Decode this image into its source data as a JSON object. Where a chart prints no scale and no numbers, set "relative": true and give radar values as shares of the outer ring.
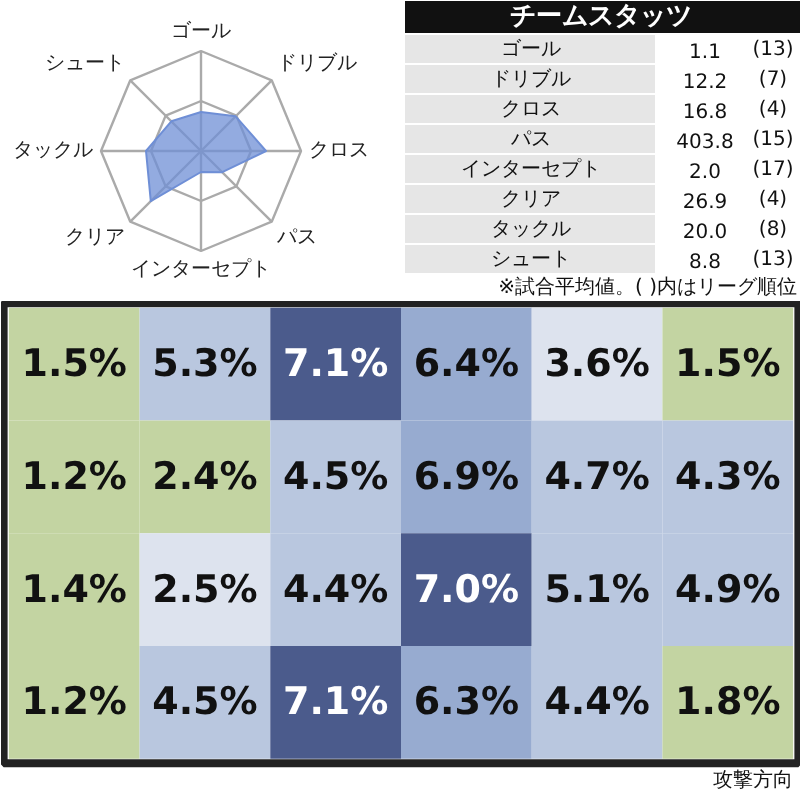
{
  "chart_data": [
    {
      "type": "radar",
      "relative": true,
      "categories": [
        "ゴール",
        "ドリブル",
        "クロス",
        "パス",
        "インターセプト",
        "クリア",
        "タックル",
        "シュート"
      ],
      "series": [
        {
          "color": "#6f8fd6",
          "values": [
            0.39,
            0.49,
            0.65,
            0.3,
            0.21,
            0.71,
            0.55,
            0.42
          ]
        }
      ]
    },
    {
      "type": "other",
      "title": "チームスタッツ",
      "categories": [
        "ゴール",
        "ドリブル",
        "クロス",
        "パス",
        "インターセプト",
        "クリア",
        "タックル",
        "シュート"
      ],
      "series": [
        {
          "color": "#ffffff",
          "values": [
            1.1,
            12.2,
            16.8,
            403.8,
            2.0,
            26.9,
            20.0,
            8.8
          ],
          "value_labels": [
            "1.1",
            "12.2",
            "16.8",
            "403.8",
            "2.0",
            "26.9",
            "20.0",
            "8.8"
          ]
        },
        {
          "color": "#ffffff",
          "values": [
            13,
            7,
            4,
            15,
            17,
            4,
            8,
            13
          ],
          "value_labels": [
            "(13)",
            "(7)",
            "(4)",
            "(15)",
            "(17)",
            "(4)",
            "(8)",
            "(13)"
          ]
        }
      ],
      "annotations": [
        "※試合平均値。( )内はリーグ順位"
      ]
    },
    {
      "type": "heatmap",
      "categories": [
        null,
        null,
        null,
        null,
        null,
        null
      ],
      "y_categories": [
        null,
        null,
        null,
        null
      ],
      "cells": [
        [
          1.5,
          5.3,
          7.1,
          6.4,
          3.6,
          1.5
        ],
        [
          1.2,
          2.4,
          4.5,
          6.9,
          4.7,
          4.3
        ],
        [
          1.4,
          2.5,
          4.4,
          7.0,
          5.1,
          4.9
        ],
        [
          1.2,
          4.5,
          7.1,
          6.3,
          4.4,
          1.8
        ]
      ],
      "cell_labels": [
        [
          "1.5%",
          "5.3%",
          "7.1%",
          "6.4%",
          "3.6%",
          "1.5%"
        ],
        [
          "1.2%",
          "2.4%",
          "4.5%",
          "6.9%",
          "4.7%",
          "4.3%"
        ],
        [
          "1.4%",
          "2.5%",
          "4.4%",
          "7.0%",
          "5.1%",
          "4.9%"
        ],
        [
          "1.2%",
          "4.5%",
          "7.1%",
          "6.3%",
          "4.4%",
          "1.8%"
        ]
      ],
      "colors": [
        [
          "#c3d4a2",
          "#b9c7df",
          "#4b5b8c",
          "#97abd0",
          "#dde3ee",
          "#c3d4a2"
        ],
        [
          "#c3d4a2",
          "#c3d4a2",
          "#b9c7df",
          "#97abd0",
          "#b9c7df",
          "#b9c7df"
        ],
        [
          "#c3d4a2",
          "#dde3ee",
          "#b9c7df",
          "#4b5b8c",
          "#b9c7df",
          "#b9c7df"
        ],
        [
          "#c3d4a2",
          "#b9c7df",
          "#4b5b8c",
          "#97abd0",
          "#b9c7df",
          "#c3d4a2"
        ]
      ],
      "annotations": [
        "攻撃方向"
      ]
    }
  ]
}
